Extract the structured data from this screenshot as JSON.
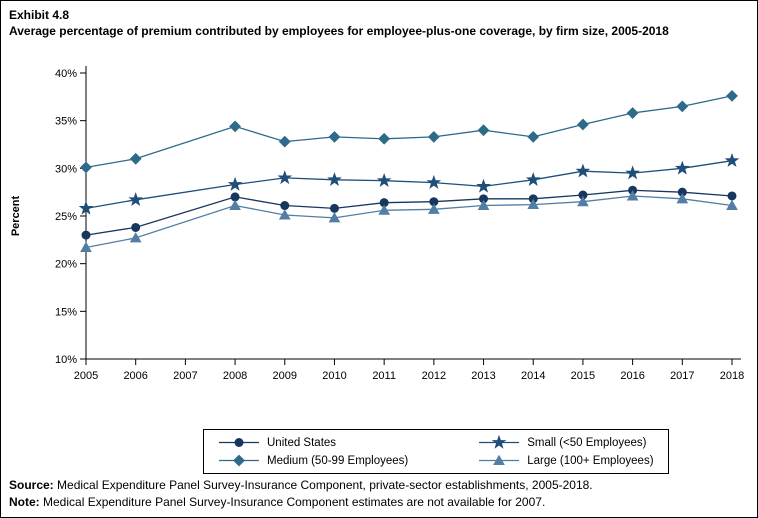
{
  "title": {
    "exhibit": "Exhibit 4.8",
    "text": "Average percentage of premium contributed by employees for employee-plus-one coverage, by firm size, 2005-2018"
  },
  "chart_data": {
    "type": "line",
    "title": "Average percentage of premium contributed by employees for employee-plus-one coverage, by firm size, 2005-2018",
    "xlabel": "",
    "ylabel": "Percent",
    "ylim": [
      10,
      40
    ],
    "yticks": [
      10,
      15,
      20,
      25,
      30,
      35,
      40
    ],
    "ytick_suffix": "%",
    "grid": false,
    "x": [
      2005,
      2006,
      2007,
      2008,
      2009,
      2010,
      2011,
      2012,
      2013,
      2014,
      2015,
      2016,
      2017,
      2018
    ],
    "missing_years": [
      2007
    ],
    "series": [
      {
        "name": "United States",
        "marker": "circle",
        "color": "#17375E",
        "values": [
          23.0,
          23.8,
          null,
          27.0,
          26.1,
          25.8,
          26.4,
          26.5,
          26.8,
          26.8,
          27.2,
          27.7,
          27.5,
          27.1
        ]
      },
      {
        "name": "Small (<50 Employees)",
        "marker": "star",
        "color": "#1F4E79",
        "values": [
          25.8,
          26.7,
          null,
          28.3,
          29.0,
          28.8,
          28.7,
          28.5,
          28.1,
          28.8,
          29.7,
          29.5,
          30.0,
          30.8
        ]
      },
      {
        "name": "Medium (50-99 Employees)",
        "marker": "diamond",
        "color": "#2E6A8A",
        "values": [
          30.1,
          31.0,
          null,
          34.4,
          32.8,
          33.3,
          33.1,
          33.3,
          34.0,
          33.3,
          34.6,
          35.8,
          36.5,
          37.6
        ]
      },
      {
        "name": "Large (100+ Employees)",
        "marker": "triangle",
        "color": "#527EA3",
        "values": [
          21.7,
          22.7,
          null,
          26.1,
          25.1,
          24.8,
          25.6,
          25.7,
          26.1,
          26.2,
          26.5,
          27.1,
          26.8,
          26.1
        ]
      }
    ],
    "legend": {
      "position": "bottom",
      "order": [
        "United States",
        "Small (<50 Employees)",
        "Medium (50-99 Employees)",
        "Large (100+ Employees)"
      ]
    }
  },
  "footer": {
    "source_label": "Source:",
    "source_text": " Medical Expenditure Panel Survey-Insurance Component, private-sector establishments, 2005-2018.",
    "note_label": "Note:",
    "note_text": " Medical Expenditure Panel Survey-Insurance Component estimates are not available for 2007."
  }
}
